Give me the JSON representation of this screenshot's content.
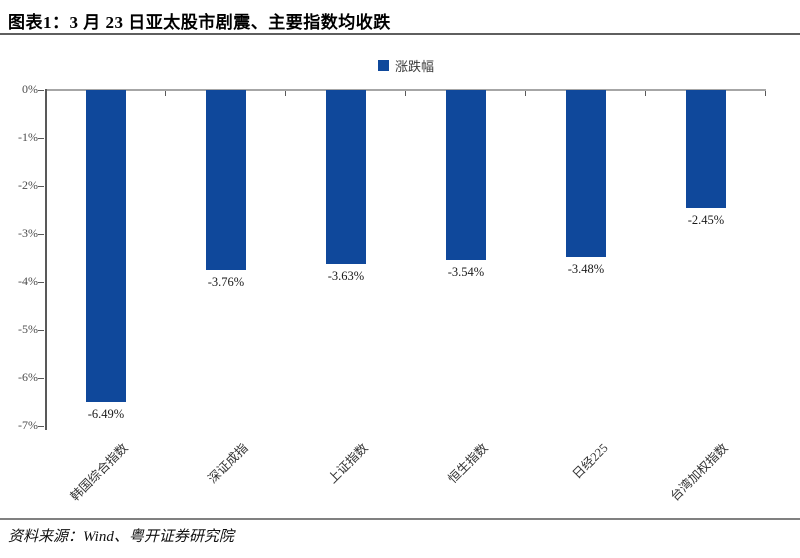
{
  "header": {
    "title": "图表1：3 月 23 日亚太股市剧震、主要指数均收跌"
  },
  "legend": {
    "label": "涨跌幅"
  },
  "footer": {
    "source": "资料来源：Wind、粤开证券研究院"
  },
  "colors": {
    "bar": "#0F489B",
    "top_axis": "#a6a6a6",
    "left_axis": "#595959",
    "rule": "#808080"
  },
  "chart_data": {
    "type": "bar",
    "title": "图表1：3 月 23 日亚太股市剧震、主要指数均收跌",
    "legend": [
      "涨跌幅"
    ],
    "legend_position": "top-center",
    "categories": [
      "韩国综合指数",
      "深证成指",
      "上证指数",
      "恒生指数",
      "日经225",
      "台湾加权指数"
    ],
    "values": [
      -6.49,
      -3.76,
      -3.63,
      -3.54,
      -3.48,
      -2.45
    ],
    "data_labels": [
      "-6.49%",
      "-3.76%",
      "-3.63%",
      "-3.54%",
      "-3.48%",
      "-2.45%"
    ],
    "xlabel": "",
    "ylabel": "",
    "ylim": [
      -7,
      0
    ],
    "ytick_labels": [
      "0%",
      "-1%",
      "-2%",
      "-3%",
      "-4%",
      "-5%",
      "-6%",
      "-7%"
    ],
    "grid": false
  }
}
